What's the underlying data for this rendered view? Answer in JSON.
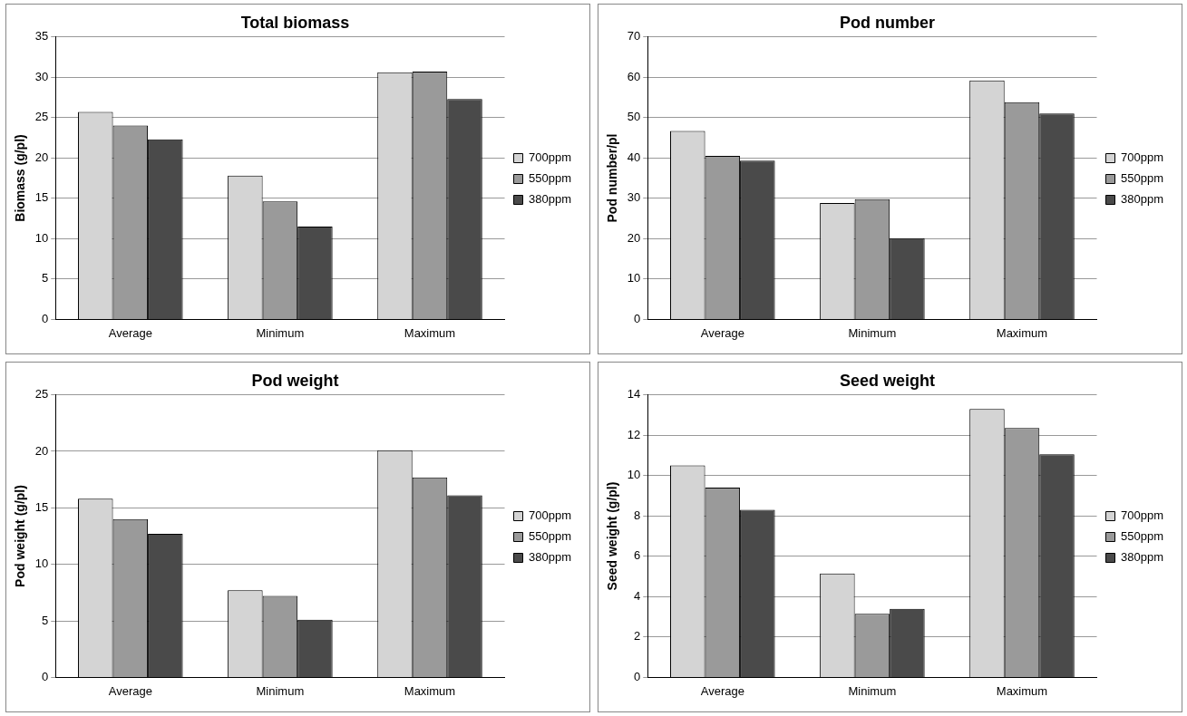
{
  "chart_data": [
    {
      "type": "bar",
      "title": "Total biomass",
      "ylabel": "Biomass (g/pl)",
      "categories": [
        "Average",
        "Minimum",
        "Maximum"
      ],
      "series": [
        {
          "name": "700ppm",
          "color": "#d4d4d4",
          "values": [
            25.7,
            17.8,
            30.6
          ]
        },
        {
          "name": "550ppm",
          "color": "#9a9a9a",
          "values": [
            24.0,
            14.6,
            30.7
          ]
        },
        {
          "name": "380ppm",
          "color": "#4a4a4a",
          "values": [
            22.3,
            11.5,
            27.3
          ]
        }
      ],
      "ylim": [
        0,
        35
      ],
      "yticks": [
        0,
        5,
        10,
        15,
        20,
        25,
        30,
        35
      ],
      "grid": "y",
      "legend": "right"
    },
    {
      "type": "bar",
      "title": "Pod number",
      "ylabel": "Pod number/pl",
      "categories": [
        "Average",
        "Minimum",
        "Maximum"
      ],
      "series": [
        {
          "name": "700ppm",
          "color": "#d4d4d4",
          "values": [
            46.7,
            28.8,
            59.2
          ]
        },
        {
          "name": "550ppm",
          "color": "#9a9a9a",
          "values": [
            40.5,
            29.8,
            53.8
          ]
        },
        {
          "name": "380ppm",
          "color": "#4a4a4a",
          "values": [
            39.3,
            20.1,
            51.0
          ]
        }
      ],
      "ylim": [
        0,
        70
      ],
      "yticks": [
        0,
        10,
        20,
        30,
        40,
        50,
        60,
        70
      ],
      "grid": "y",
      "legend": "right"
    },
    {
      "type": "bar",
      "title": "Pod weight",
      "ylabel": "Pod weight (g/pl)",
      "categories": [
        "Average",
        "Minimum",
        "Maximum"
      ],
      "series": [
        {
          "name": "700ppm",
          "color": "#d4d4d4",
          "values": [
            15.8,
            7.7,
            20.1
          ]
        },
        {
          "name": "550ppm",
          "color": "#9a9a9a",
          "values": [
            14.0,
            7.2,
            17.7
          ]
        },
        {
          "name": "380ppm",
          "color": "#4a4a4a",
          "values": [
            12.7,
            5.1,
            16.1
          ]
        }
      ],
      "ylim": [
        0,
        25
      ],
      "yticks": [
        0,
        5,
        10,
        15,
        20,
        25
      ],
      "grid": "y",
      "legend": "right"
    },
    {
      "type": "bar",
      "title": "Seed weight",
      "ylabel": "Seed weight (g/pl)",
      "categories": [
        "Average",
        "Minimum",
        "Maximum"
      ],
      "series": [
        {
          "name": "700ppm",
          "color": "#d4d4d4",
          "values": [
            10.5,
            5.15,
            13.3
          ]
        },
        {
          "name": "550ppm",
          "color": "#9a9a9a",
          "values": [
            9.4,
            3.15,
            12.35
          ]
        },
        {
          "name": "380ppm",
          "color": "#4a4a4a",
          "values": [
            8.3,
            3.4,
            11.05
          ]
        }
      ],
      "ylim": [
        0,
        14
      ],
      "yticks": [
        0,
        2,
        4,
        6,
        8,
        10,
        12,
        14
      ],
      "grid": "y",
      "legend": "right"
    }
  ]
}
